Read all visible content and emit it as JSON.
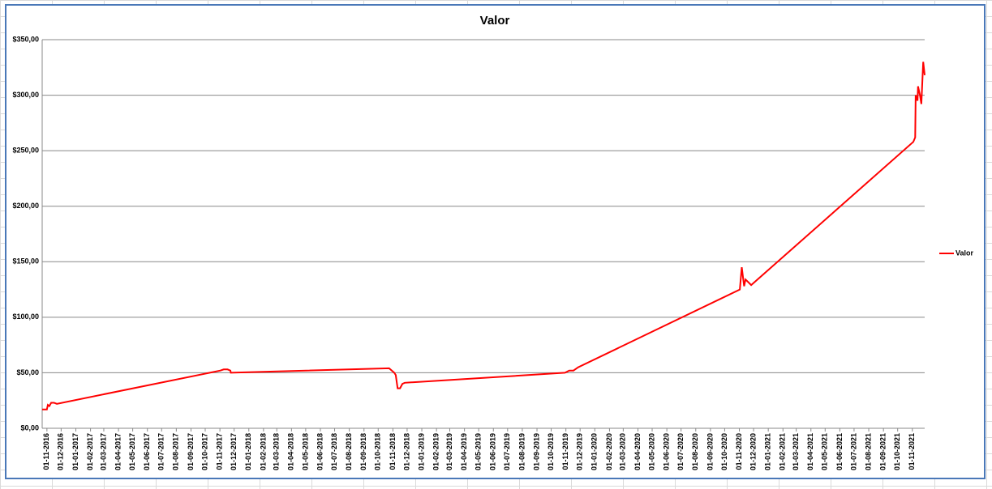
{
  "chart_data": {
    "type": "line",
    "title": "Valor",
    "x": [
      "22-10-2016",
      "01-11-2016",
      "03-11-2016",
      "06-11-2016",
      "10-11-2016",
      "16-11-2016",
      "22-11-2016",
      "02-11-2017",
      "09-11-2017",
      "17-11-2017",
      "23-11-2017",
      "24-11-2017",
      "24-10-2018",
      "04-11-2018",
      "07-11-2018",
      "11-11-2018",
      "16-11-2018",
      "21-11-2018",
      "26-11-2018",
      "30-10-2019",
      "08-11-2019",
      "17-11-2019",
      "27-11-2019",
      "02-11-2020",
      "06-11-2020",
      "11-11-2020",
      "14-11-2020",
      "19-11-2020",
      "26-11-2020",
      "03-11-2021",
      "07-11-2021",
      "08-11-2021",
      "12-11-2021",
      "13-11-2021",
      "17-11-2021",
      "20-11-2021",
      "24-11-2021",
      "27-11-2021"
    ],
    "series": [
      {
        "name": "Valor",
        "color": "#ff0000",
        "values": [
          17,
          17,
          21,
          20,
          23,
          23,
          22,
          52,
          53,
          53,
          52,
          50,
          54,
          50,
          48,
          36,
          36,
          40,
          41,
          50,
          52,
          52,
          55,
          125,
          145,
          128,
          134,
          132,
          129,
          258,
          262,
          300,
          295,
          308,
          300,
          292,
          330,
          318
        ]
      }
    ],
    "xlim": [
      "22-10-2016",
      "27-11-2021"
    ],
    "xticks": [
      "01-11-2016",
      "01-12-2016",
      "01-01-2017",
      "01-02-2017",
      "01-03-2017",
      "01-04-2017",
      "01-05-2017",
      "01-06-2017",
      "01-07-2017",
      "01-08-2017",
      "01-09-2017",
      "01-10-2017",
      "01-11-2017",
      "01-12-2017",
      "01-01-2018",
      "01-02-2018",
      "01-03-2018",
      "01-04-2018",
      "01-05-2018",
      "01-06-2018",
      "01-07-2018",
      "01-08-2018",
      "01-09-2018",
      "01-10-2018",
      "01-11-2018",
      "01-12-2018",
      "01-01-2019",
      "01-02-2019",
      "01-03-2019",
      "01-04-2019",
      "01-05-2019",
      "01-06-2019",
      "01-07-2019",
      "01-08-2019",
      "01-09-2019",
      "01-10-2019",
      "01-11-2019",
      "01-12-2019",
      "01-01-2020",
      "01-02-2020",
      "01-03-2020",
      "01-04-2020",
      "01-05-2020",
      "01-06-2020",
      "01-07-2020",
      "01-08-2020",
      "01-09-2020",
      "01-10-2020",
      "01-11-2020",
      "01-12-2020",
      "01-01-2021",
      "01-02-2021",
      "01-03-2021",
      "01-04-2021",
      "01-05-2021",
      "01-06-2021",
      "01-07-2021",
      "01-08-2021",
      "01-09-2021",
      "01-10-2021",
      "01-11-2021"
    ],
    "ylim": [
      0,
      350
    ],
    "yticks": [
      {
        "value": 0,
        "label": "$0,00"
      },
      {
        "value": 50,
        "label": "$50,00"
      },
      {
        "value": 100,
        "label": "$100,00"
      },
      {
        "value": 150,
        "label": "$150,00"
      },
      {
        "value": 200,
        "label": "$200,00"
      },
      {
        "value": 250,
        "label": "$250,00"
      },
      {
        "value": 300,
        "label": "$300,00"
      },
      {
        "value": 350,
        "label": "$350,00"
      }
    ],
    "grid": true,
    "legend": "right"
  }
}
